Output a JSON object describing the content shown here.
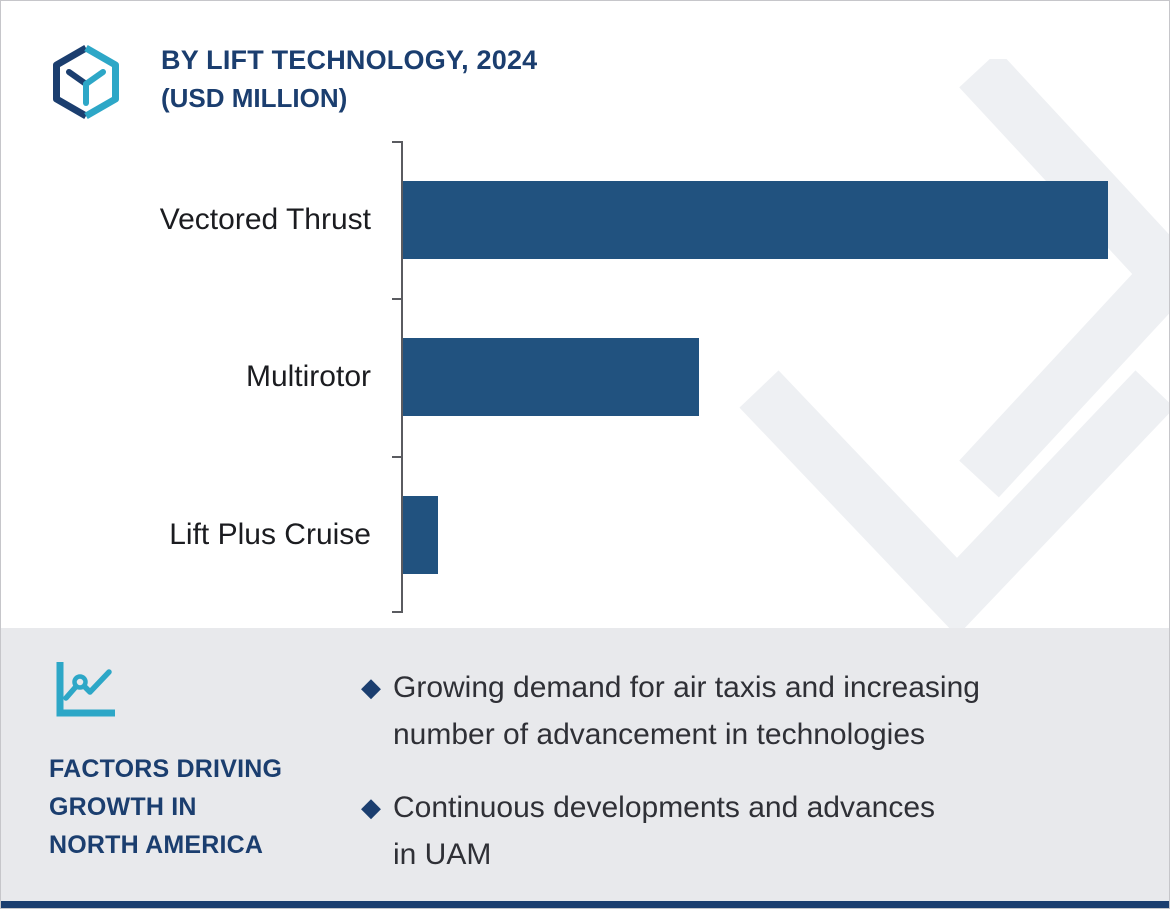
{
  "header": {
    "title": "BY LIFT TECHNOLOGY, 2024",
    "subtitle": "(USD MILLION)",
    "logo_icon": "hexagon-y-logo-icon"
  },
  "chart_data": {
    "type": "bar",
    "orientation": "horizontal",
    "title": "BY LIFT TECHNOLOGY, 2024",
    "subtitle": "(USD MILLION)",
    "unit": "USD Million",
    "categories": [
      "Vectored Thrust",
      "Multirotor",
      "Lift Plus Cruise"
    ],
    "values": [
      100,
      42,
      5
    ],
    "values_estimated_from_bar_lengths": true,
    "xlim": [
      0,
      105
    ],
    "grid": false,
    "legend": false,
    "value_labels_shown": false,
    "bar_color": "#21527f",
    "axis_color": "#5a5b60"
  },
  "factors_panel": {
    "icon": "line-chart-icon",
    "heading": "FACTORS DRIVING\nGROWTH IN\nNORTH AMERICA",
    "bullet_marker": "◆",
    "bullets": [
      "Growing demand for air taxis and increasing\nnumber of advancement in technologies",
      "Continuous developments and advances\nin UAM"
    ]
  },
  "colors": {
    "navy": "#1b3e6f",
    "teal": "#2da7c7",
    "bar_blue": "#21527f",
    "panel_bg": "#e8e9ec",
    "text_dark": "#2f3036"
  }
}
